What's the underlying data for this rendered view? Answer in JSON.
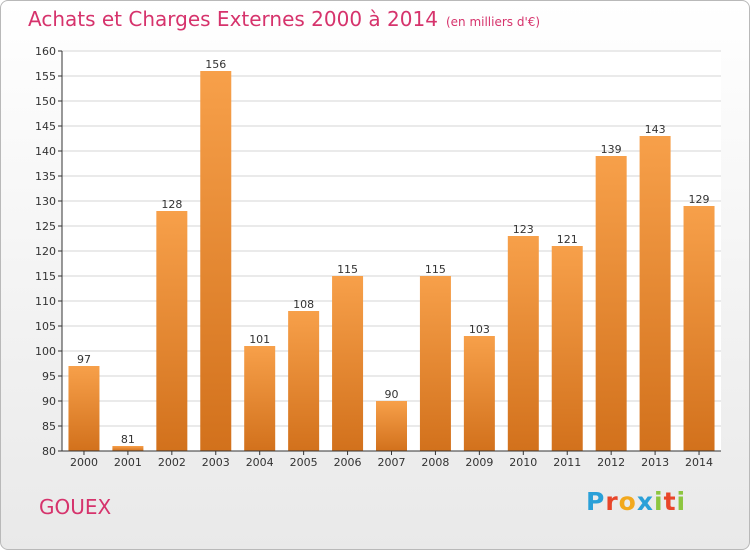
{
  "header": {
    "title": "Achats et Charges Externes 2000 à 2014",
    "unit": "(en milliers d'€)"
  },
  "place_name": "GOUEX",
  "logo": {
    "text": "Proxiti",
    "letters": [
      "P",
      "r",
      "o",
      "x",
      "i",
      "t",
      "i"
    ],
    "colors": [
      "#2aa0d8",
      "#e8462a",
      "#f2a81d",
      "#2aa0d8",
      "#8dc63f",
      "#e8462a",
      "#8dc63f"
    ]
  },
  "colors": {
    "bar_light": "#f7a04a",
    "bar_dark": "#d2711c",
    "title": "#d6336c"
  },
  "chart_data": {
    "type": "bar",
    "title": "Achats et Charges Externes 2000 à 2014",
    "subtitle": "(en milliers d'€)",
    "categories": [
      "2000",
      "2001",
      "2002",
      "2003",
      "2004",
      "2005",
      "2006",
      "2007",
      "2008",
      "2009",
      "2010",
      "2011",
      "2012",
      "2013",
      "2014"
    ],
    "values": [
      97,
      81,
      128,
      156,
      101,
      108,
      115,
      90,
      115,
      103,
      123,
      121,
      139,
      143,
      129
    ],
    "ylim": [
      80,
      160
    ],
    "yticks": [
      80,
      85,
      90,
      95,
      100,
      105,
      110,
      115,
      120,
      125,
      130,
      135,
      140,
      145,
      150,
      155,
      160
    ],
    "grid": true,
    "xlabel": "",
    "ylabel": ""
  }
}
